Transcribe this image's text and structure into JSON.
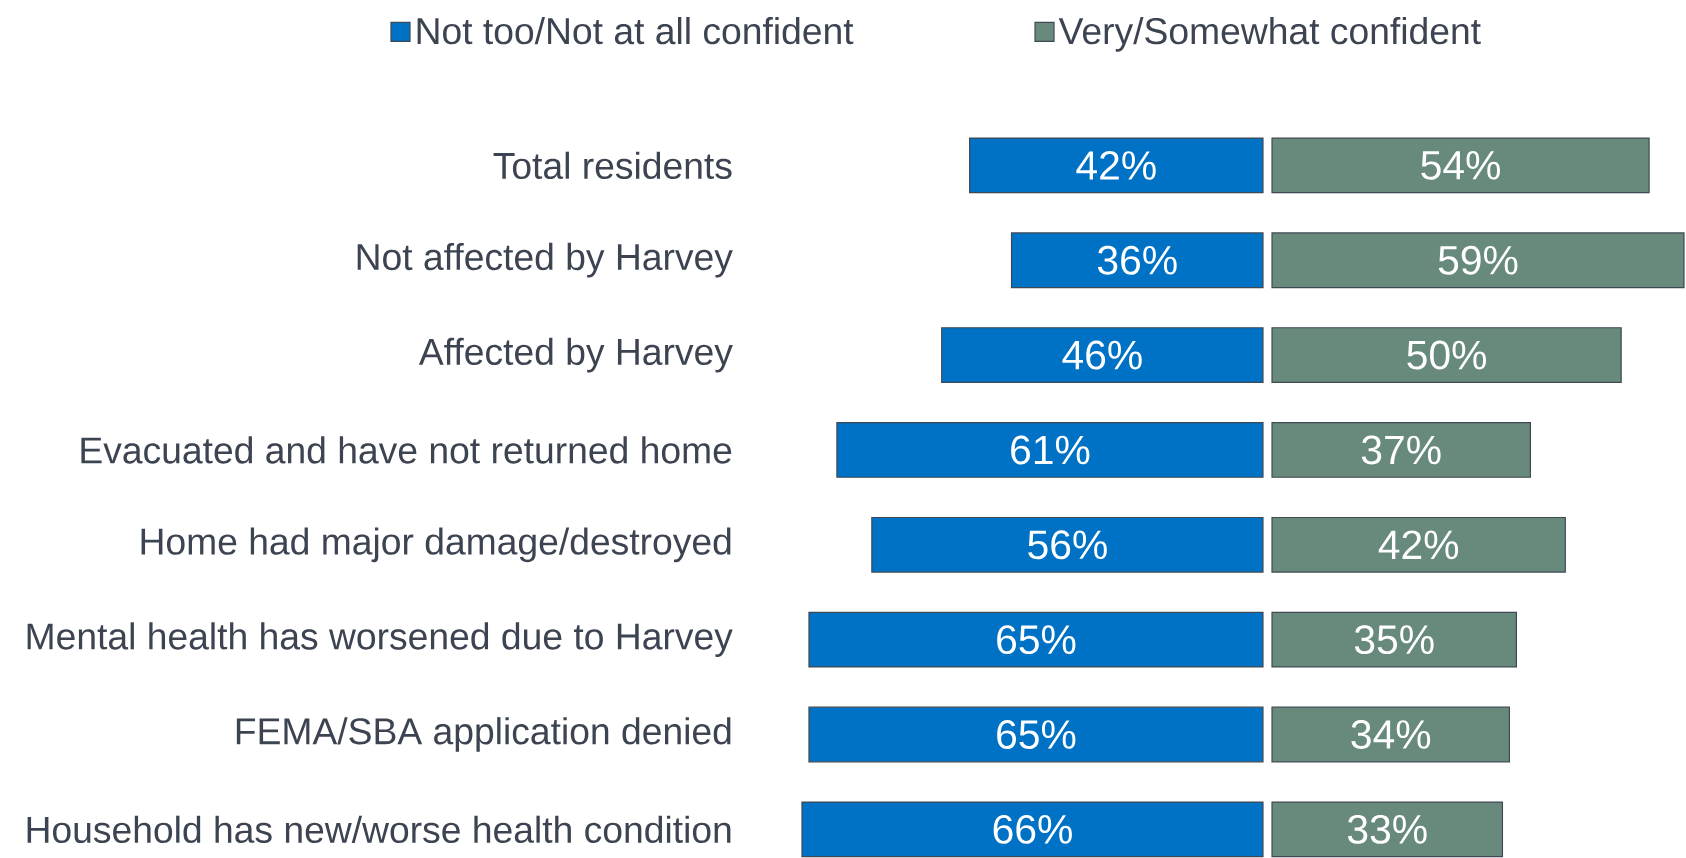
{
  "chart_data": [
    {
      "type": "bar",
      "orientation": "horizontal",
      "categories": [
        "Total residents",
        "Not affected by Harvey",
        "Affected by Harvey",
        "Evacuated and have not returned home",
        "Home had major damage/destroyed",
        "Mental health has worsened due to Harvey",
        "FEMA/SBA application denied",
        "Household has new/worse health condition"
      ],
      "series": [
        {
          "name": "Not too/Not at all confident",
          "color": "#0072c6",
          "values": [
            42,
            36,
            46,
            61,
            56,
            65,
            65,
            66
          ],
          "value_labels": [
            "42%",
            "36%",
            "46%",
            "61%",
            "56%",
            "65%",
            "65%",
            "66%"
          ]
        }
      ],
      "xlim": [
        66,
        0
      ],
      "tick_labels": "y",
      "legend": "top"
    },
    {
      "type": "bar",
      "orientation": "horizontal",
      "categories": [
        null,
        null,
        null,
        null,
        null,
        null,
        null,
        null
      ],
      "series": [
        {
          "name": "Very/Somewhat confident",
          "color": "#688a7c",
          "values": [
            54,
            59,
            50,
            37,
            42,
            35,
            34,
            33
          ],
          "value_labels": [
            "54%",
            "59%",
            "50%",
            "37%",
            "42%",
            "35%",
            "34%",
            "33%"
          ]
        }
      ],
      "xlim": [
        0,
        59
      ],
      "legend": "top"
    }
  ]
}
